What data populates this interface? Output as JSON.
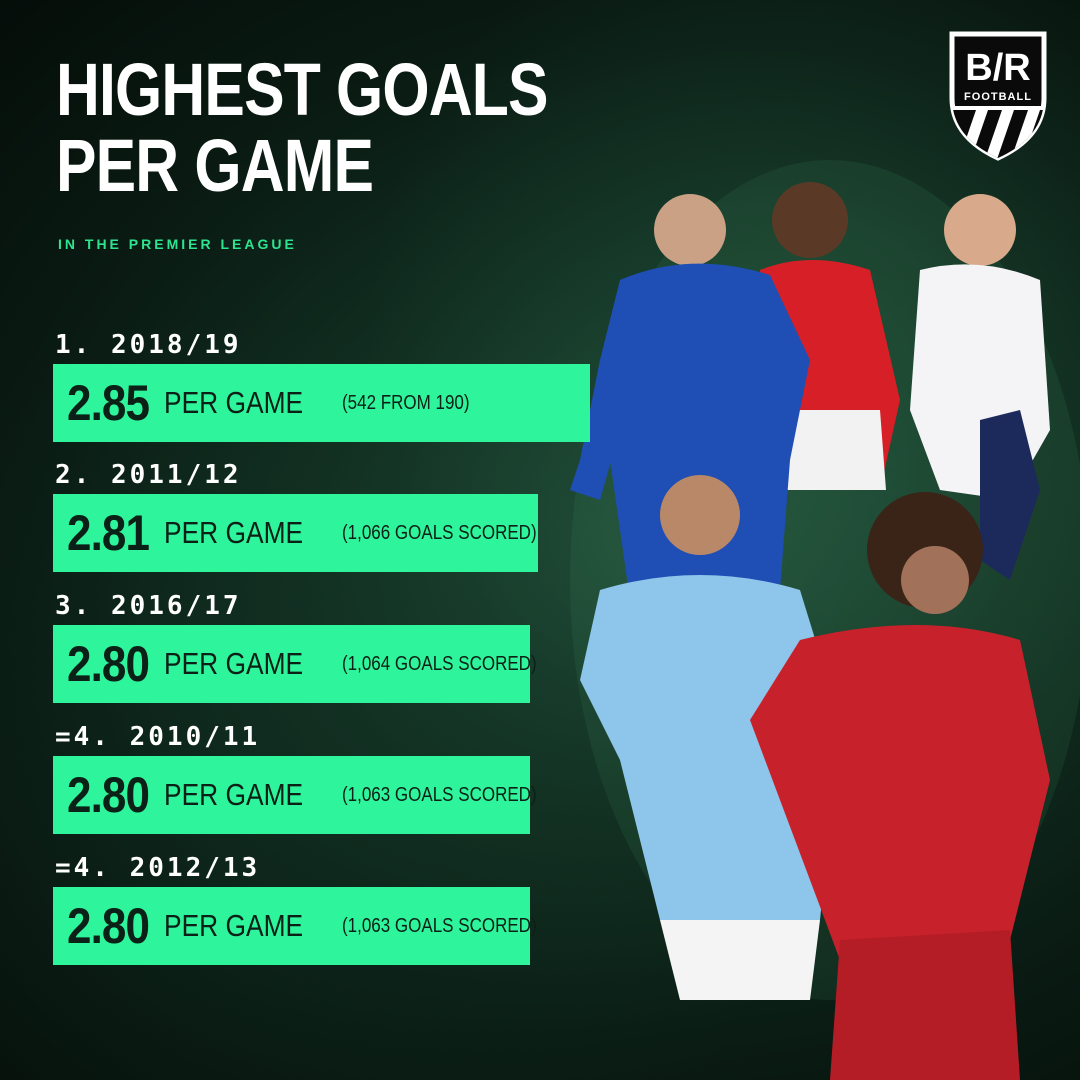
{
  "header": {
    "title_line1": "HIGHEST GOALS",
    "title_line2": "PER GAME",
    "subtitle": "IN THE PREMIER LEAGUE"
  },
  "logo": {
    "text": "B/R",
    "subtext": "FOOTBALL"
  },
  "entries": [
    {
      "rank": "1. 2018/19",
      "value": "2.85",
      "unit": "PER GAME",
      "detail": "(542 FROM 190)"
    },
    {
      "rank": "2. 2011/12",
      "value": "2.81",
      "unit": "PER GAME",
      "detail": "(1,066 GOALS SCORED)"
    },
    {
      "rank": "3. 2016/17",
      "value": "2.80",
      "unit": "PER GAME",
      "detail": "(1,064 GOALS SCORED)"
    },
    {
      "rank": "=4. 2010/11",
      "value": "2.80",
      "unit": "PER GAME",
      "detail": "(1,063 GOALS SCORED)"
    },
    {
      "rank": "=4. 2012/13",
      "value": "2.80",
      "unit": "PER GAME",
      "detail": "(1,063 GOALS SCORED)"
    }
  ],
  "colors": {
    "accent": "#2ef59b",
    "subtitle": "#2ee58f",
    "background": "#0f2a1e",
    "bar_text": "#0b2016"
  }
}
